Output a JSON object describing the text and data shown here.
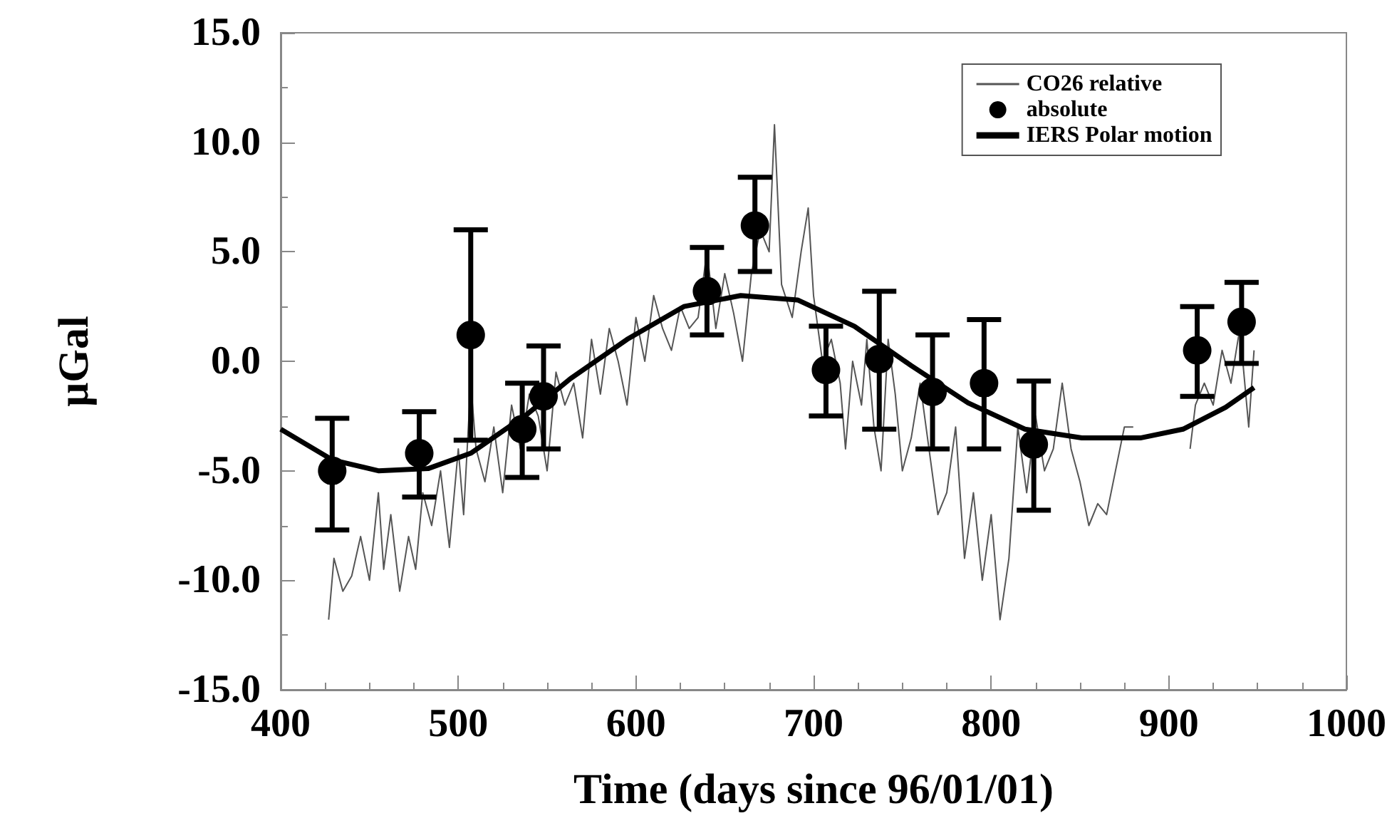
{
  "chart_data": {
    "type": "line",
    "xlabel": "Time (days since 96/01/01)",
    "ylabel": "μGal",
    "xlim": [
      400,
      1000
    ],
    "xticks": [
      400,
      500,
      600,
      700,
      800,
      900,
      1000
    ],
    "ylim": [
      -15,
      15
    ],
    "yticks": [
      {
        "value": -15,
        "label": "-15.0"
      },
      {
        "value": -10,
        "label": "-10.0"
      },
      {
        "value": -5,
        "label": "-5.0"
      },
      {
        "value": 0,
        "label": "0.0"
      },
      {
        "value": 5,
        "label": "5.0"
      },
      {
        "value": 10,
        "label": "10.0"
      },
      {
        "value": 15,
        "label": "15.0"
      }
    ],
    "grid": false,
    "legend": "top right",
    "series": [
      {
        "name": "CO26 relative",
        "color": "#555555",
        "marker": "none",
        "x": [
          427,
          430,
          435,
          440,
          445,
          450,
          455,
          458,
          462,
          467,
          472,
          476,
          480,
          485,
          490,
          495,
          500,
          503,
          507,
          510,
          515,
          520,
          525,
          530,
          535,
          540,
          545,
          550,
          555,
          560,
          565,
          570,
          575,
          580,
          585,
          590,
          595,
          600,
          605,
          610,
          615,
          620,
          625,
          630,
          635,
          640,
          645,
          650,
          655,
          660,
          665,
          670,
          675,
          678,
          682,
          688,
          693,
          697,
          700,
          705,
          710,
          715,
          718,
          722,
          727,
          730,
          734,
          738,
          742,
          746,
          750,
          755,
          760,
          765,
          770,
          775,
          780,
          785,
          790,
          795,
          800,
          805,
          810,
          815,
          820,
          825,
          830,
          835,
          840,
          845,
          850,
          855,
          860,
          865,
          870,
          875,
          880,
          897,
          912,
          915,
          920,
          925,
          930,
          935,
          940,
          945,
          948
        ],
        "values": [
          -11.8,
          -9,
          -10.5,
          -9.8,
          -8,
          -10,
          -6,
          -9.5,
          -7,
          -10.5,
          -8,
          -9.5,
          -6,
          -7.5,
          -5,
          -8.5,
          -4,
          -7,
          -1,
          -4,
          -5.5,
          -3,
          -6,
          -2,
          -4,
          -1.5,
          -2.5,
          -5,
          -0.5,
          -2,
          -1,
          -3.5,
          1,
          -1.5,
          1.5,
          0,
          -2,
          2,
          0,
          3,
          1.5,
          0.5,
          2.5,
          1.5,
          2,
          5,
          1.5,
          4,
          2.2,
          0,
          4,
          6,
          5,
          10.8,
          3.5,
          2,
          5,
          7,
          3,
          0,
          1,
          -1,
          -4,
          0,
          -2,
          1,
          -3,
          -5,
          1,
          -1.5,
          -5,
          -3.5,
          -1,
          -4,
          -7,
          -6,
          -3,
          -9,
          -6,
          -10,
          -7,
          -11.8,
          -9,
          -3,
          -6,
          -2.5,
          -5,
          -4,
          -1,
          -4,
          -5.5,
          -7.5,
          -6.5,
          -7,
          -5,
          -3,
          -3,
          null,
          -4,
          -2,
          -1,
          -2,
          0.5,
          -1,
          1.5,
          -3,
          0.5
        ]
      },
      {
        "name": "absolute",
        "type": "scatter",
        "color": "#000000",
        "marker": "circle",
        "x": [
          429,
          478,
          507,
          536,
          548,
          640,
          667,
          707,
          737,
          767,
          796,
          824,
          916,
          941
        ],
        "values": [
          -5.0,
          -4.2,
          1.2,
          -3.1,
          -1.6,
          3.2,
          6.2,
          -0.4,
          0.1,
          -1.4,
          -1.0,
          -3.8,
          0.5,
          1.8
        ],
        "errors": [
          [
            -7.7,
            -2.6
          ],
          [
            -6.2,
            -2.3
          ],
          [
            -3.6,
            6.0
          ],
          [
            -5.3,
            -1.0
          ],
          [
            -4.0,
            0.7
          ],
          [
            1.2,
            5.2
          ],
          [
            4.1,
            8.4
          ],
          [
            -2.5,
            1.6
          ],
          [
            -3.1,
            3.2
          ],
          [
            -4.0,
            1.2
          ],
          [
            -4.0,
            1.9
          ],
          [
            -6.8,
            -0.9
          ],
          [
            -1.6,
            2.5
          ],
          [
            -0.1,
            3.6
          ]
        ]
      },
      {
        "name": "IERS Polar motion",
        "color": "#000000",
        "marker": "none",
        "x": [
          400,
          429,
          455,
          483,
          507,
          539,
          563,
          595,
          627,
          659,
          691,
          723,
          755,
          787,
          819,
          851,
          884,
          908,
          932,
          948
        ],
        "values": [
          -3.1,
          -4.5,
          -5.0,
          -4.9,
          -4.2,
          -2.4,
          -0.8,
          1.0,
          2.5,
          3.0,
          2.8,
          1.6,
          -0.2,
          -1.9,
          -3.1,
          -3.5,
          -3.5,
          -3.1,
          -2.1,
          -1.2
        ]
      }
    ]
  }
}
